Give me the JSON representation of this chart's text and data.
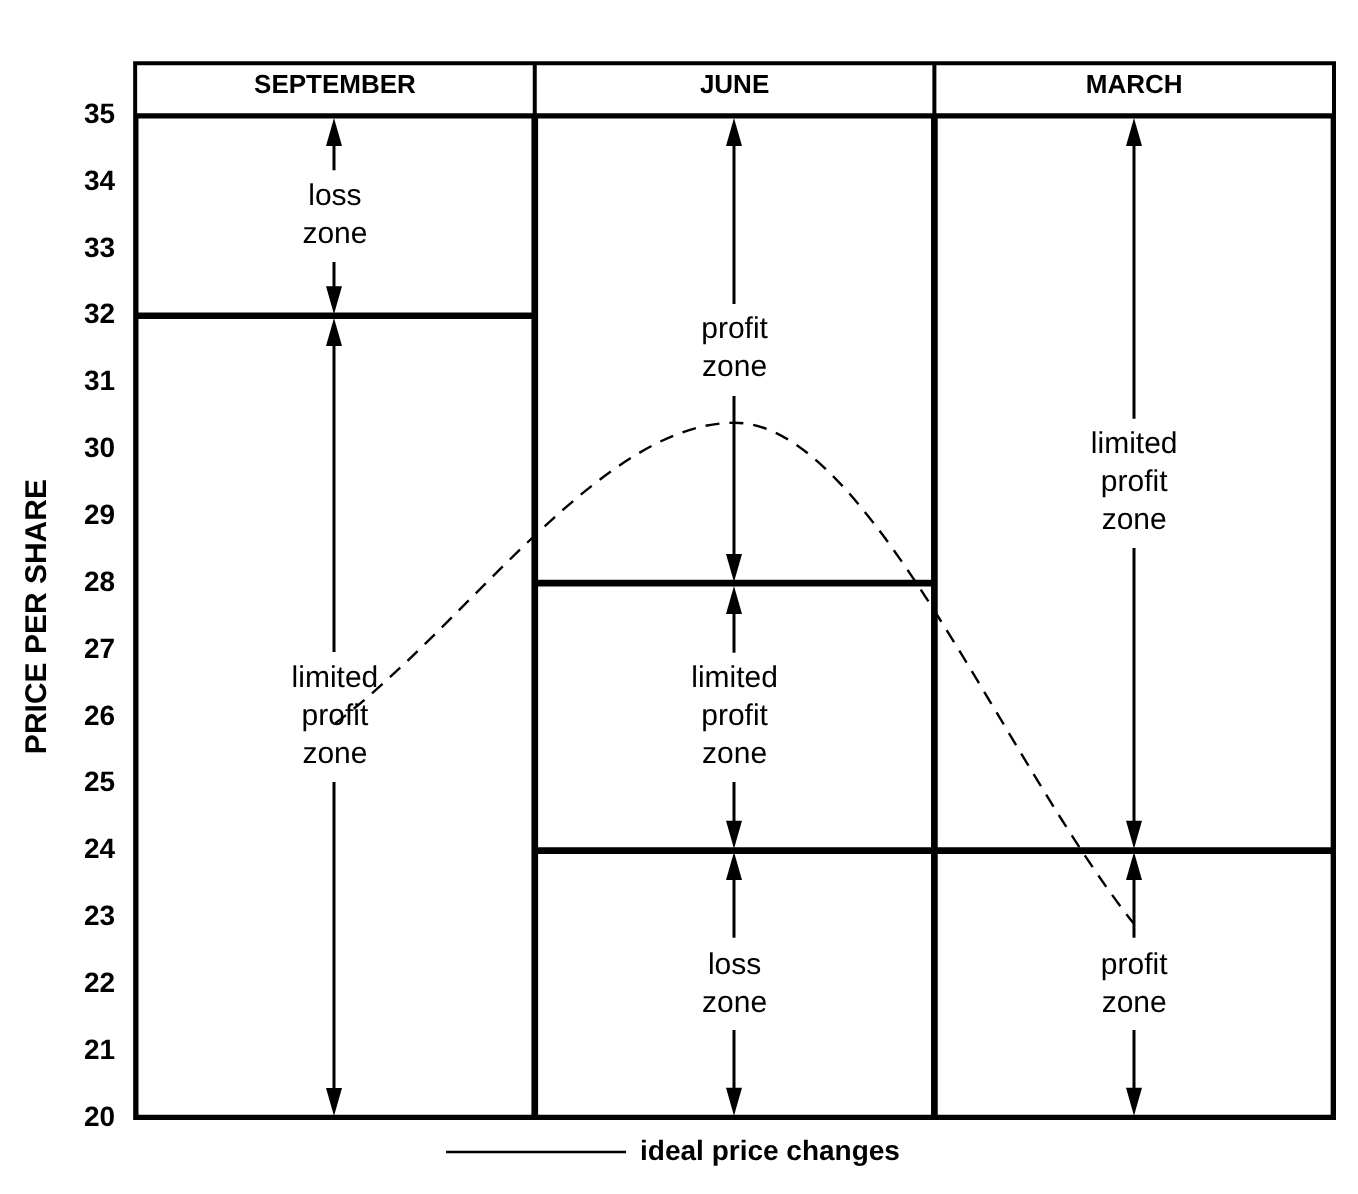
{
  "chart_data": {
    "type": "bar",
    "ylabel": "PRICE PER SHARE",
    "categories": [
      "SEPTEMBER",
      "JUNE",
      "MARCH"
    ],
    "ylim": [
      20,
      35
    ],
    "yticks": [
      20,
      21,
      22,
      23,
      24,
      25,
      26,
      27,
      28,
      29,
      30,
      31,
      32,
      33,
      34,
      35
    ],
    "legend": "bottom",
    "series": [
      {
        "color": "#ffffff",
        "base": [
          20,
          20,
          20
        ],
        "values": [
          12,
          4,
          4
        ]
      },
      {
        "color": "#ffffff",
        "base": [
          32,
          24,
          24
        ],
        "values": [
          3,
          4,
          11
        ]
      },
      {
        "color": "#ffffff",
        "base": [
          null,
          28,
          null
        ],
        "values": [
          null,
          7,
          null
        ]
      },
      {
        "type": "line",
        "name": "ideal price changes",
        "color": "#000000",
        "line_style": "dashed",
        "marker": "none",
        "values": [
          25.9,
          30.4,
          22.9
        ]
      }
    ],
    "annotations": [
      "loss\nzone",
      "limited\nprofit\nzone",
      "profit\nzone",
      "limited\nprofit\nzone",
      "loss\nzone",
      "limited\nprofit\nzone",
      "profit\nzone"
    ]
  }
}
